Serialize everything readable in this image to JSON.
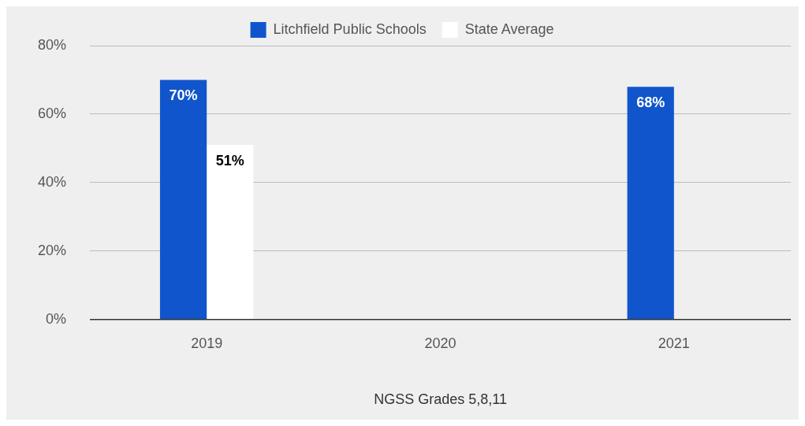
{
  "chart_data": {
    "type": "bar",
    "xlabel": "NGSS Grades 5,8,11",
    "categories": [
      "2019",
      "2020",
      "2021"
    ],
    "series": [
      {
        "name": "Litchfield Public Schools",
        "color": "#1155cc",
        "values": [
          70,
          null,
          68
        ],
        "value_labels": [
          "70%",
          null,
          "68%"
        ]
      },
      {
        "name": "State Average",
        "color": "#ffffff",
        "values": [
          51,
          null,
          null
        ],
        "value_labels": [
          "51%",
          null,
          null
        ]
      }
    ],
    "ylim": [
      0,
      80
    ],
    "yticks": [
      {
        "value": 0,
        "label": "0%"
      },
      {
        "value": 20,
        "label": "20%"
      },
      {
        "value": 40,
        "label": "40%"
      },
      {
        "value": 60,
        "label": "60%"
      },
      {
        "value": 80,
        "label": "80%"
      }
    ],
    "grid": "y",
    "legend": "top"
  }
}
